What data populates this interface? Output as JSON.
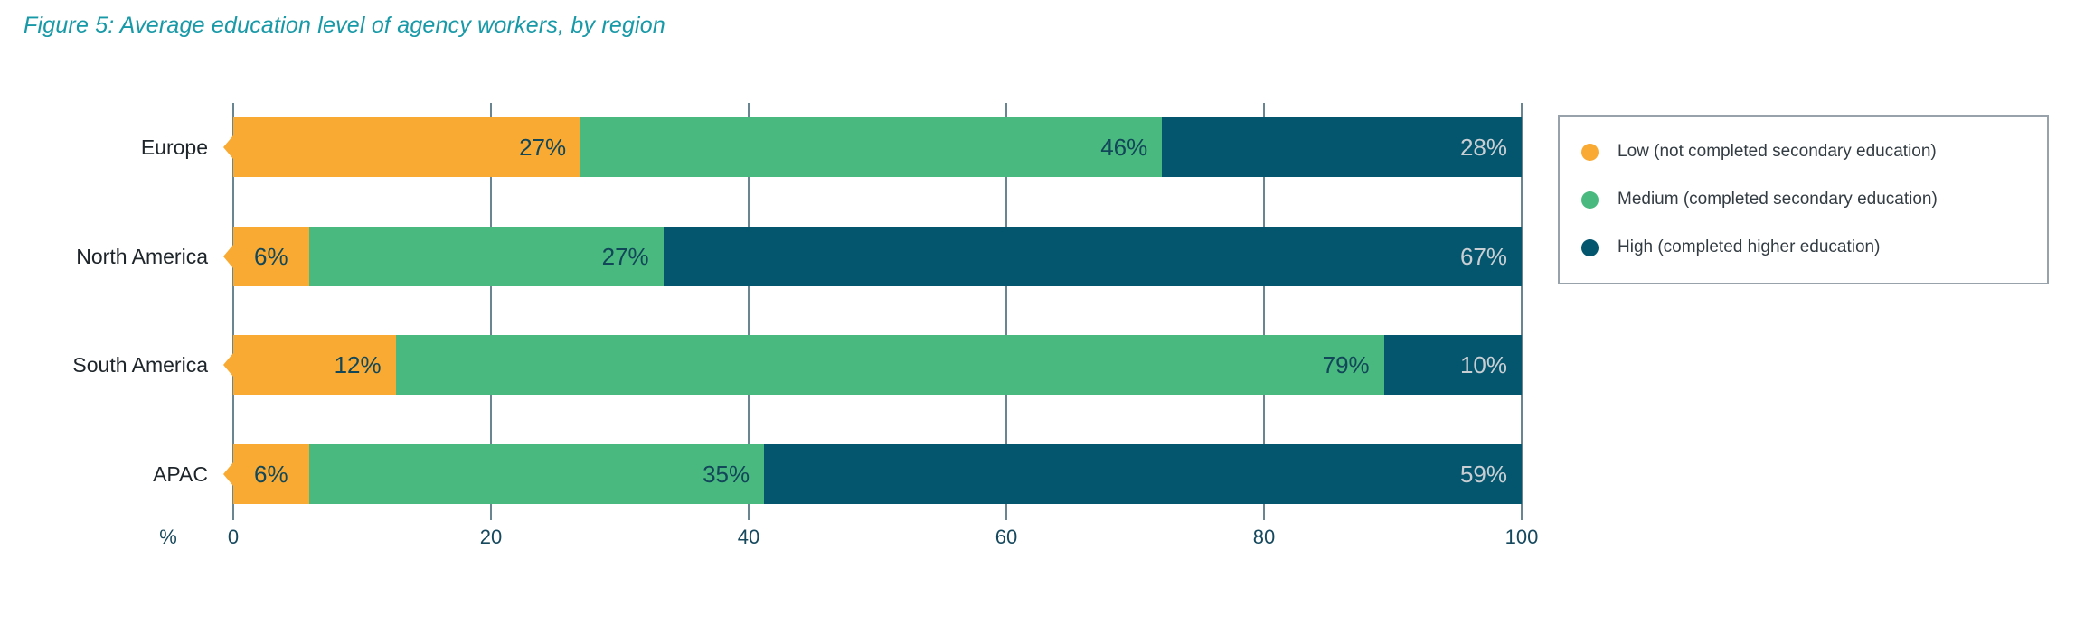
{
  "title": "Figure 5: Average education level of agency workers, by region",
  "colors": {
    "low": "#F9AA33",
    "medium": "#49B97F",
    "high": "#03566E",
    "title": "#1899A7",
    "label_on_light": "#12475A",
    "label_on_dark": "#C9CED3",
    "gridline": "#6A8592"
  },
  "chart_data": {
    "type": "bar",
    "orientation": "horizontal",
    "stacked": true,
    "title": "Figure 5: Average education level of agency workers, by region",
    "categories": [
      "Europe",
      "North America",
      "South America",
      "APAC"
    ],
    "series": [
      {
        "name": "Low (not completed secondary education)",
        "key": "low",
        "values": [
          27,
          6,
          12,
          6
        ]
      },
      {
        "name": "Medium (completed secondary education)",
        "key": "medium",
        "values": [
          46,
          27,
          79,
          35
        ]
      },
      {
        "name": "High (completed higher education)",
        "key": "high",
        "values": [
          28,
          67,
          10,
          59
        ]
      }
    ],
    "value_suffix": "%",
    "xlabel": "%",
    "x_ticks": [
      0,
      20,
      40,
      60,
      80,
      100
    ],
    "xlim": [
      0,
      100
    ],
    "grid": "vertical",
    "legend_position": "right"
  }
}
